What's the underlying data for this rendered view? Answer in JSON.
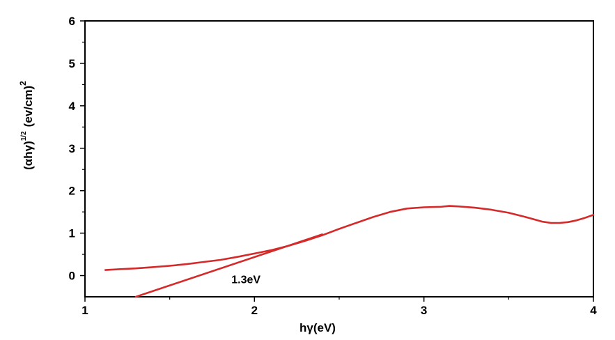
{
  "chart_data": {
    "type": "line",
    "xlabel": "hγ(eV)",
    "ylabel": "(αhγ)^1/2 (ev/cm)^2",
    "ylabel_parts": {
      "base": "(αhγ)",
      "base_sup": "1/2",
      "unit": "(ev/cm)",
      "unit_sup": "2"
    },
    "xlim": [
      1,
      4
    ],
    "ylim": [
      -0.5,
      6
    ],
    "xticks": [
      "1",
      "2",
      "3",
      "4"
    ],
    "yticks": [
      "0",
      "1",
      "2",
      "3",
      "4",
      "5",
      "6"
    ],
    "grid": false,
    "line_color": "#d42a2a",
    "series": [
      {
        "x": [
          1.12,
          1.2,
          1.3,
          1.4,
          1.5,
          1.6,
          1.7,
          1.8,
          1.9,
          2.0,
          2.1,
          2.2,
          2.3,
          2.4,
          2.5,
          2.6,
          2.7,
          2.8,
          2.9,
          3.0,
          3.1,
          3.15,
          3.2,
          3.3,
          3.4,
          3.5,
          3.6,
          3.7,
          3.75,
          3.8,
          3.85,
          3.9,
          3.95,
          4.0
        ],
        "y": [
          0.13,
          0.15,
          0.17,
          0.2,
          0.23,
          0.27,
          0.32,
          0.37,
          0.44,
          0.52,
          0.6,
          0.7,
          0.82,
          0.95,
          1.1,
          1.24,
          1.38,
          1.5,
          1.58,
          1.61,
          1.62,
          1.64,
          1.63,
          1.6,
          1.55,
          1.48,
          1.38,
          1.27,
          1.24,
          1.24,
          1.26,
          1.3,
          1.36,
          1.43
        ]
      },
      {
        "x": [
          1.3,
          2.4
        ],
        "y": [
          -0.5,
          0.97
        ]
      }
    ],
    "annotations": [
      {
        "text": "1.3eV",
        "x": 1.95,
        "y": -0.18
      }
    ]
  }
}
